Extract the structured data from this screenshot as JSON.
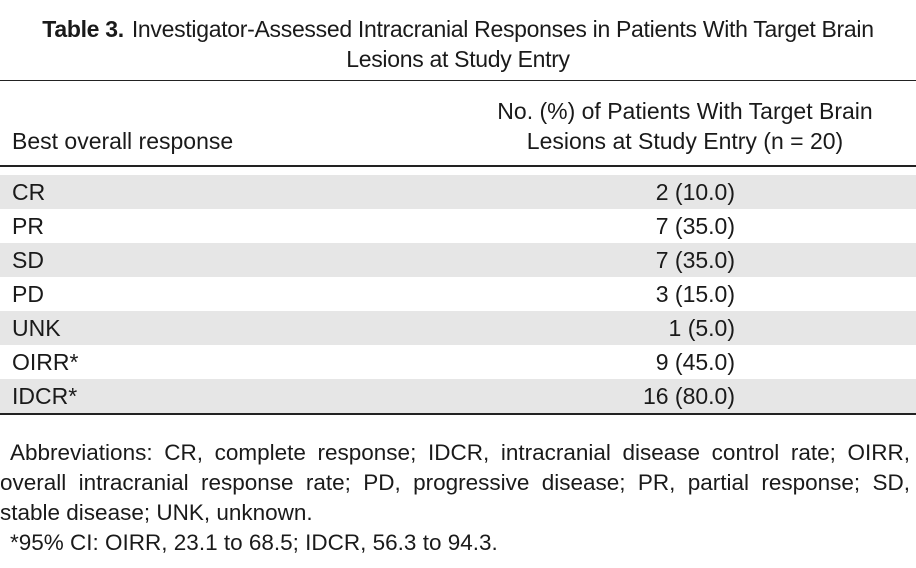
{
  "table": {
    "label": "Table 3.",
    "title": "Investigator-Assessed Intracranial Responses in Patients With Target Brain Lesions at Study Entry",
    "columns": [
      "Best overall response",
      "No. (%) of Patients With Target Brain Lesions at Study Entry (n = 20)"
    ],
    "rows": [
      [
        "CR",
        "2 (10.0)"
      ],
      [
        "PR",
        "7 (35.0)"
      ],
      [
        "SD",
        "7 (35.0)"
      ],
      [
        "PD",
        "3 (15.0)"
      ],
      [
        "UNK",
        "1 (5.0)"
      ],
      [
        "OIRR*",
        "9 (45.0)"
      ],
      [
        "IDCR*",
        "16 (80.0)"
      ]
    ]
  },
  "footnotes": [
    "Abbreviations: CR, complete response; IDCR, intracranial disease control rate; OIRR, overall intracranial response rate; PD, progressive disease; PR, partial response; SD, stable disease; UNK, unknown.",
    "*95% CI: OIRR, 23.1 to 68.5; IDCR, 56.3 to 94.3."
  ]
}
